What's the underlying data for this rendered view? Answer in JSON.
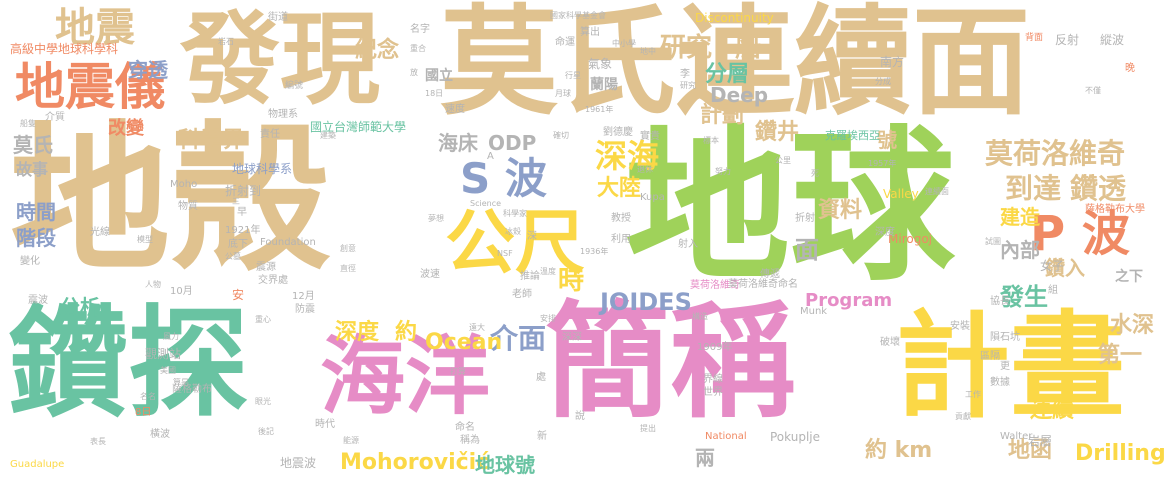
{
  "colors": {
    "tan": "#e0c28f",
    "orange": "#f08a64",
    "green": "#9fd25a",
    "teal": "#69c3a2",
    "pink": "#e68cc6",
    "yellow": "#fbd846",
    "blue": "#8c9fc9",
    "gray": "#b4b4b4"
  },
  "words": [
    {
      "text": "地殼",
      "color": "tan"
    },
    {
      "text": "地球",
      "color": "green"
    },
    {
      "text": "鑽探",
      "color": "teal"
    },
    {
      "text": "簡稱",
      "color": "pink"
    },
    {
      "text": "莫氏連續面",
      "color": "tan"
    },
    {
      "text": "發現",
      "color": "tan"
    },
    {
      "text": "計畫",
      "color": "yellow"
    },
    {
      "text": "海洋",
      "color": "pink"
    },
    {
      "text": "地震儀",
      "color": "orange"
    },
    {
      "text": "公尺",
      "color": "yellow"
    },
    {
      "text": "地震",
      "color": "tan"
    },
    {
      "text": "S 波",
      "color": "blue"
    },
    {
      "text": "P 波",
      "color": "orange"
    },
    {
      "text": "深海",
      "color": "yellow"
    },
    {
      "text": "莫荷洛維奇",
      "color": "tan"
    },
    {
      "text": "到達",
      "color": "tan"
    },
    {
      "text": "鑽透",
      "color": "tan"
    },
    {
      "text": "研究",
      "color": "tan"
    },
    {
      "text": "船",
      "color": "tan"
    },
    {
      "text": "分層",
      "color": "teal"
    },
    {
      "text": "Deep",
      "color": "gray"
    },
    {
      "text": "計劃",
      "color": "tan"
    },
    {
      "text": "紀念",
      "color": "tan"
    },
    {
      "text": "穿透",
      "color": "blue"
    },
    {
      "text": "改變",
      "color": "orange"
    },
    {
      "text": "科學界",
      "color": "tan"
    },
    {
      "text": "莫氏",
      "color": "gray"
    },
    {
      "text": "故事",
      "color": "gray"
    },
    {
      "text": "海床",
      "color": "gray"
    },
    {
      "text": "ODP",
      "color": "gray"
    },
    {
      "text": "大陸",
      "color": "yellow"
    },
    {
      "text": "鑽井",
      "color": "tan"
    },
    {
      "text": "號",
      "color": "tan"
    },
    {
      "text": "資料",
      "color": "tan"
    },
    {
      "text": "建造",
      "color": "yellow"
    },
    {
      "text": "時間",
      "color": "blue"
    },
    {
      "text": "階段",
      "color": "blue"
    },
    {
      "text": "時",
      "color": "yellow"
    },
    {
      "text": "面",
      "color": "gray"
    },
    {
      "text": "內部",
      "color": "gray"
    },
    {
      "text": "鑽入",
      "color": "tan"
    },
    {
      "text": "JOIDES",
      "color": "blue"
    },
    {
      "text": "發生",
      "color": "teal"
    },
    {
      "text": "分析",
      "color": "teal"
    },
    {
      "text": "深度",
      "color": "yellow"
    },
    {
      "text": "約",
      "color": "yellow"
    },
    {
      "text": "介面",
      "color": "blue"
    },
    {
      "text": "Ocean",
      "color": "yellow"
    },
    {
      "text": "Program",
      "color": "pink"
    },
    {
      "text": "水深",
      "color": "tan"
    },
    {
      "text": "第一",
      "color": "tan"
    },
    {
      "text": "連續",
      "color": "yellow"
    },
    {
      "text": "Mohorovičić",
      "color": "yellow"
    },
    {
      "text": "地球號",
      "color": "teal"
    },
    {
      "text": "兩",
      "color": "gray"
    },
    {
      "text": "約 km",
      "color": "tan"
    },
    {
      "text": "地函",
      "color": "tan"
    },
    {
      "text": "Drilling",
      "color": "yellow"
    },
    {
      "text": "國立",
      "color": "gray"
    },
    {
      "text": "蘭陽",
      "color": "gray"
    },
    {
      "text": "之下",
      "color": "gray"
    },
    {
      "text": "女子",
      "color": "gray"
    },
    {
      "text": "岩層",
      "color": "gray"
    },
    {
      "text": "莫荷洛維奇",
      "color": "pink"
    },
    {
      "text": "高級中學地球科學科",
      "color": "orange"
    },
    {
      "text": "Discontinuity",
      "color": "yellow"
    },
    {
      "text": "國立台灣師範大學",
      "color": "teal"
    },
    {
      "text": "地球科學系",
      "color": "blue"
    },
    {
      "text": "克羅埃西亞",
      "color": "teal"
    },
    {
      "text": "薩格勒布大學",
      "color": "orange"
    },
    {
      "text": "Valley",
      "color": "yellow"
    },
    {
      "text": "Kupa",
      "color": "gray"
    },
    {
      "text": "Moho",
      "color": "gray"
    },
    {
      "text": "Mirogoj",
      "color": "orange"
    },
    {
      "text": "Foundation",
      "color": "gray"
    },
    {
      "text": "Science",
      "color": "gray"
    },
    {
      "text": "NSF",
      "color": "gray"
    },
    {
      "text": "Munk",
      "color": "gray"
    },
    {
      "text": "Pokuplje",
      "color": "gray"
    },
    {
      "text": "Walter",
      "color": "gray"
    },
    {
      "text": "National",
      "color": "orange"
    },
    {
      "text": "Guadalupe",
      "color": "yellow"
    },
    {
      "text": "1909年",
      "color": "gray"
    },
    {
      "text": "1921年",
      "color": "gray"
    },
    {
      "text": "1936年",
      "color": "gray"
    },
    {
      "text": "1957年",
      "color": "gray"
    },
    {
      "text": "1961年",
      "color": "gray"
    },
    {
      "text": "10月",
      "color": "gray"
    },
    {
      "text": "12月",
      "color": "gray"
    },
    {
      "text": "18日",
      "color": "gray"
    },
    {
      "text": "8日",
      "color": "orange"
    },
    {
      "text": "折射到",
      "color": "gray"
    },
    {
      "text": "地震波",
      "color": "gray"
    },
    {
      "text": "劉德慶",
      "color": "gray"
    },
    {
      "text": "莫荷洛維奇命名",
      "color": "gray"
    },
    {
      "text": "薩格勒布",
      "color": "gray"
    },
    {
      "text": "觀測站",
      "color": "gray"
    },
    {
      "text": "南方",
      "color": "gray"
    },
    {
      "text": "街道",
      "color": "gray"
    },
    {
      "text": "縱波",
      "color": "gray"
    },
    {
      "text": "橫波",
      "color": "gray"
    },
    {
      "text": "反射",
      "color": "gray"
    },
    {
      "text": "背面",
      "color": "orange"
    },
    {
      "text": "晚",
      "color": "orange"
    },
    {
      "text": "中小學",
      "color": "gray"
    },
    {
      "text": "國家科學基金會",
      "color": "gray"
    },
    {
      "text": "名字",
      "color": "gray"
    },
    {
      "text": "算出",
      "color": "gray"
    },
    {
      "text": "命運",
      "color": "gray"
    },
    {
      "text": "行星",
      "color": "gray"
    },
    {
      "text": "氣象",
      "color": "gray"
    },
    {
      "text": "研究",
      "color": "gray"
    },
    {
      "text": "李",
      "color": "gray"
    },
    {
      "text": "月球",
      "color": "gray"
    },
    {
      "text": "速度",
      "color": "gray"
    },
    {
      "text": "介質",
      "color": "gray"
    },
    {
      "text": "船隻",
      "color": "gray"
    },
    {
      "text": "物理系",
      "color": "gray"
    },
    {
      "text": "編號",
      "color": "gray"
    },
    {
      "text": "岩石",
      "color": "gray"
    },
    {
      "text": "責任",
      "color": "gray"
    },
    {
      "text": "建築",
      "color": "gray"
    },
    {
      "text": "實貴",
      "color": "gray"
    },
    {
      "text": "標本",
      "color": "gray"
    },
    {
      "text": "公里",
      "color": "gray"
    },
    {
      "text": "死",
      "color": "gray"
    },
    {
      "text": "退休",
      "color": "gray"
    },
    {
      "text": "努力",
      "color": "gray"
    },
    {
      "text": "教授",
      "color": "gray"
    },
    {
      "text": "利用",
      "color": "gray"
    },
    {
      "text": "射入",
      "color": "gray"
    },
    {
      "text": "科學家",
      "color": "gray"
    },
    {
      "text": "夢想",
      "color": "gray"
    },
    {
      "text": "冰殼",
      "color": "gray"
    },
    {
      "text": "光線",
      "color": "gray"
    },
    {
      "text": "模型",
      "color": "gray"
    },
    {
      "text": "物質",
      "color": "gray"
    },
    {
      "text": "底下",
      "color": "gray"
    },
    {
      "text": "震源",
      "color": "gray"
    },
    {
      "text": "交界處",
      "color": "gray"
    },
    {
      "text": "防震",
      "color": "gray"
    },
    {
      "text": "直徑",
      "color": "gray"
    },
    {
      "text": "創意",
      "color": "gray"
    },
    {
      "text": "公墓",
      "color": "gray"
    },
    {
      "text": "人物",
      "color": "gray"
    },
    {
      "text": "變化",
      "color": "gray"
    },
    {
      "text": "震波",
      "color": "gray"
    },
    {
      "text": "風力",
      "color": "gray"
    },
    {
      "text": "重心",
      "color": "gray"
    },
    {
      "text": "美國",
      "color": "gray"
    },
    {
      "text": "算是",
      "color": "gray"
    },
    {
      "text": "名名",
      "color": "gray"
    },
    {
      "text": "時代",
      "color": "gray"
    },
    {
      "text": "命名",
      "color": "gray"
    },
    {
      "text": "稱為",
      "color": "gray"
    },
    {
      "text": "推論",
      "color": "gray"
    },
    {
      "text": "安排",
      "color": "gray"
    },
    {
      "text": "老師",
      "color": "gray"
    },
    {
      "text": "遠大",
      "color": "gray"
    },
    {
      "text": "處",
      "color": "gray"
    },
    {
      "text": "說",
      "color": "gray"
    },
    {
      "text": "世界",
      "color": "gray"
    },
    {
      "text": "界線",
      "color": "gray"
    },
    {
      "text": "數據",
      "color": "gray"
    },
    {
      "text": "工作",
      "color": "gray"
    },
    {
      "text": "貢獻",
      "color": "gray"
    },
    {
      "text": "區隔",
      "color": "gray"
    },
    {
      "text": "隕石坑",
      "color": "gray"
    },
    {
      "text": "安裝",
      "color": "gray"
    },
    {
      "text": "破壞",
      "color": "gray"
    },
    {
      "text": "協長",
      "color": "gray"
    },
    {
      "text": "更",
      "color": "gray"
    },
    {
      "text": "試圖",
      "color": "gray"
    },
    {
      "text": "連續面",
      "color": "gray"
    },
    {
      "text": "分成",
      "color": "gray"
    },
    {
      "text": "不僅",
      "color": "gray"
    },
    {
      "text": "深度",
      "color": "gray"
    },
    {
      "text": "傳遞",
      "color": "gray"
    },
    {
      "text": "組",
      "color": "gray"
    },
    {
      "text": "構造",
      "color": "gray"
    },
    {
      "text": "深深",
      "color": "gray"
    },
    {
      "text": "打算",
      "color": "gray"
    },
    {
      "text": "後記",
      "color": "gray"
    },
    {
      "text": "眼光",
      "color": "gray"
    },
    {
      "text": "表長",
      "color": "gray"
    },
    {
      "text": "能源",
      "color": "gray"
    },
    {
      "text": "提出",
      "color": "gray"
    },
    {
      "text": "新",
      "color": "gray"
    },
    {
      "text": "安",
      "color": "orange"
    },
    {
      "text": "早",
      "color": "gray"
    },
    {
      "text": "三",
      "color": "gray"
    },
    {
      "text": "放",
      "color": "gray"
    },
    {
      "text": "深",
      "color": "gray"
    },
    {
      "text": "A",
      "color": "gray"
    },
    {
      "text": "波速",
      "color": "gray"
    },
    {
      "text": "確切",
      "color": "gray"
    },
    {
      "text": "重合",
      "color": "gray"
    },
    {
      "text": "地中",
      "color": "gray"
    },
    {
      "text": "折射",
      "color": "gray"
    },
    {
      "text": "溫度",
      "color": "gray"
    }
  ]
}
